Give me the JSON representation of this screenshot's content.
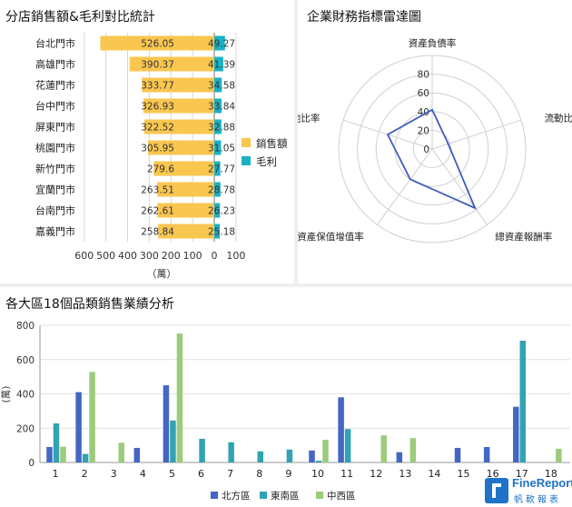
{
  "chart_data": [
    {
      "type": "bar",
      "orientation": "horizontal",
      "title": "分店銷售額&毛利對比統計",
      "xlabel": "（萬）",
      "categories": [
        "台北門市",
        "高雄門市",
        "花蓮門市",
        "台中門市",
        "屏東門市",
        "桃園門市",
        "新竹門市",
        "宜蘭門市",
        "台南門市",
        "嘉義門市"
      ],
      "series": [
        {
          "name": "銷售額",
          "color": "#f9c650",
          "values": [
            526.05,
            390.37,
            333.77,
            326.93,
            322.52,
            305.95,
            279.6,
            263.51,
            262.61,
            258.84
          ],
          "labels": [
            "526.05",
            "390.37",
            "333.77",
            "326.93",
            "322.52",
            "305.95",
            "279.6",
            "263.51",
            "262.61",
            "258.84"
          ]
        },
        {
          "name": "毛利",
          "color": "#1ab0c6",
          "values": [
            49.27,
            41.39,
            34.58,
            33.84,
            32.88,
            31.05,
            27.77,
            28.78,
            26.23,
            25.18
          ],
          "labels": [
            "49.27",
            "41.39",
            "34.58",
            "33.84",
            "32.88",
            "31.05",
            "27.77",
            "28.78",
            "26.23",
            "25.18"
          ]
        }
      ],
      "xticks": [
        "600",
        "500",
        "400",
        "300",
        "200",
        "100",
        "0",
        "100"
      ],
      "xlim": [
        -600,
        100
      ],
      "legend": "right"
    },
    {
      "type": "radar",
      "title": "企業財務指標雷達圖",
      "axes": [
        "資產負債率",
        "流動比率",
        "總資產報酬率",
        "資產保值增值率",
        "其他比率"
      ],
      "values": [
        42,
        18,
        78,
        40,
        50
      ],
      "rticks": [
        "0",
        "20",
        "40",
        "60",
        "80"
      ],
      "rlim": [
        0,
        100
      ],
      "color": "#3c5dbf"
    },
    {
      "type": "bar",
      "title": "各大區18個品類銷售業績分析",
      "ylabel": "(萬)",
      "categories": [
        "1",
        "2",
        "3",
        "4",
        "5",
        "6",
        "7",
        "8",
        "9",
        "10",
        "11",
        "12",
        "13",
        "14",
        "15",
        "16",
        "17",
        "18"
      ],
      "yticks": [
        "0",
        "200",
        "400",
        "600",
        "800"
      ],
      "ylim": [
        0,
        800
      ],
      "legend": "bottom",
      "series": [
        {
          "name": "北方區",
          "color": "#4466c4",
          "values": [
            90,
            410,
            0,
            85,
            450,
            0,
            0,
            0,
            0,
            70,
            380,
            0,
            60,
            0,
            85,
            90,
            325,
            0
          ]
        },
        {
          "name": "東南區",
          "color": "#31a3b3",
          "values": [
            228,
            50,
            0,
            0,
            245,
            138,
            118,
            65,
            75,
            10,
            195,
            0,
            0,
            0,
            0,
            0,
            710,
            0
          ]
        },
        {
          "name": "中西區",
          "color": "#9ccb7c",
          "values": [
            92,
            528,
            115,
            0,
            752,
            0,
            0,
            0,
            0,
            132,
            0,
            158,
            142,
            0,
            0,
            0,
            0,
            80
          ]
        }
      ]
    }
  ],
  "brand": {
    "name": "FineReport",
    "cn": "帆軟報表"
  }
}
